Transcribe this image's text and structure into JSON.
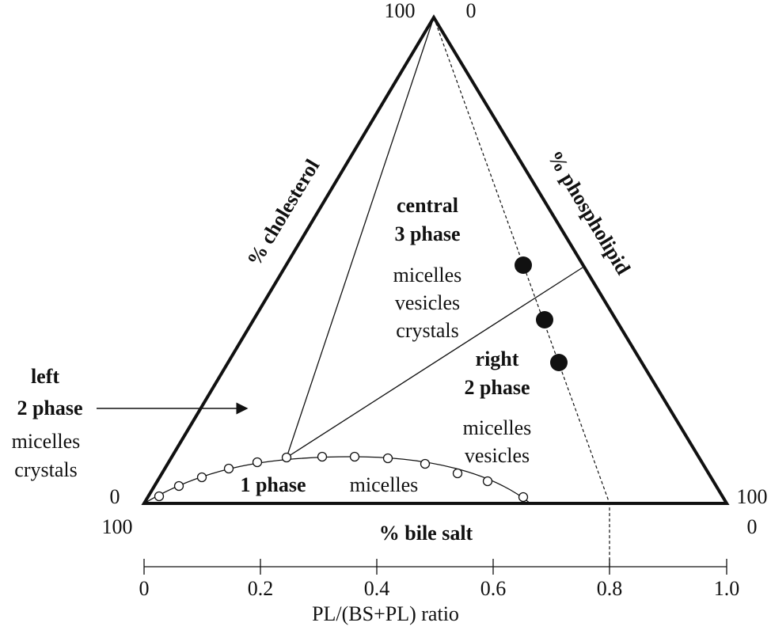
{
  "apex": {
    "left_label": "100",
    "right_label": "0"
  },
  "axes": {
    "left": "% cholesterol",
    "right": "% phospholipid",
    "bottom": "% bile salt",
    "bottom_left_labels": [
      "0",
      "100"
    ],
    "bottom_right_labels": [
      "100",
      "0"
    ]
  },
  "regions": {
    "central": {
      "title": [
        "central",
        "3 phase"
      ],
      "contents": [
        "micelles",
        "vesicles",
        "crystals"
      ]
    },
    "right": {
      "title": [
        "right",
        "2 phase"
      ],
      "contents": [
        "micelles",
        "vesicles"
      ]
    },
    "left": {
      "title": [
        "left",
        "2 phase"
      ],
      "contents": [
        "micelles",
        "crystals"
      ]
    },
    "one_phase": {
      "title": "1 phase",
      "contents": "micelles"
    }
  },
  "scale": {
    "ticks": [
      "0",
      "0.2",
      "0.4",
      "0.6",
      "0.8",
      "1.0"
    ],
    "label": "PL/(BS+PL) ratio"
  }
}
